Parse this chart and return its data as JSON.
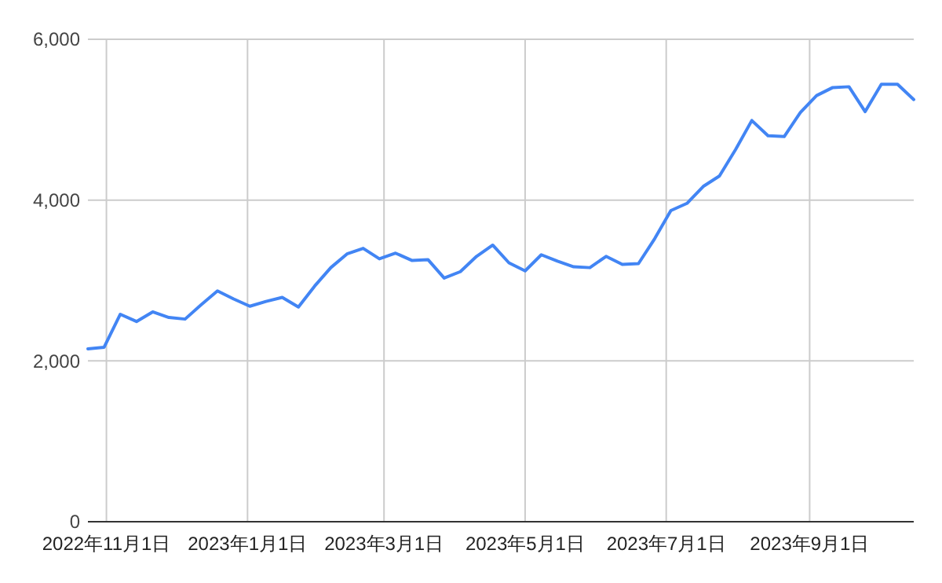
{
  "chart_data": {
    "type": "line",
    "x": [
      "2022-10-24",
      "2022-10-31",
      "2022-11-07",
      "2022-11-14",
      "2022-11-21",
      "2022-11-28",
      "2022-12-05",
      "2022-12-12",
      "2022-12-19",
      "2022-12-26",
      "2023-01-02",
      "2023-01-09",
      "2023-01-16",
      "2023-01-23",
      "2023-01-30",
      "2023-02-06",
      "2023-02-13",
      "2023-02-20",
      "2023-02-27",
      "2023-03-06",
      "2023-03-13",
      "2023-03-20",
      "2023-03-27",
      "2023-04-03",
      "2023-04-10",
      "2023-04-17",
      "2023-04-24",
      "2023-05-01",
      "2023-05-08",
      "2023-05-15",
      "2023-05-22",
      "2023-05-29",
      "2023-06-05",
      "2023-06-12",
      "2023-06-19",
      "2023-06-26",
      "2023-07-03",
      "2023-07-10",
      "2023-07-17",
      "2023-07-24",
      "2023-07-31",
      "2023-08-07",
      "2023-08-14",
      "2023-08-21",
      "2023-08-28",
      "2023-09-04",
      "2023-09-11",
      "2023-09-18",
      "2023-09-25",
      "2023-10-02",
      "2023-10-09",
      "2023-10-16"
    ],
    "series": [
      {
        "color": "#4285f4",
        "values": [
          2150,
          2170,
          2580,
          2490,
          2610,
          2540,
          2520,
          2700,
          2870,
          2770,
          2680,
          2740,
          2790,
          2670,
          2930,
          3160,
          3330,
          3400,
          3270,
          3340,
          3250,
          3260,
          3030,
          3110,
          3300,
          3440,
          3220,
          3120,
          3320,
          3240,
          3170,
          3160,
          3300,
          3200,
          3210,
          3520,
          3870,
          3960,
          4170,
          4300,
          4630,
          4990,
          4800,
          4790,
          5090,
          5300,
          5400,
          5410,
          5100,
          5440,
          5440,
          5250
        ]
      }
    ],
    "xlim": [
      "2022-10-24",
      "2023-10-16"
    ],
    "xticks": [
      {
        "value": "2022-11-01",
        "label": "2022年11月1日"
      },
      {
        "value": "2023-01-01",
        "label": "2023年1月1日"
      },
      {
        "value": "2023-03-01",
        "label": "2023年3月1日"
      },
      {
        "value": "2023-05-01",
        "label": "2023年5月1日"
      },
      {
        "value": "2023-07-01",
        "label": "2023年7月1日"
      },
      {
        "value": "2023-09-01",
        "label": "2023年9月1日"
      }
    ],
    "ylim": [
      0,
      6000
    ],
    "yticks": [
      {
        "value": 0,
        "label": "0"
      },
      {
        "value": 2000,
        "label": "2,000"
      },
      {
        "value": 4000,
        "label": "4,000"
      },
      {
        "value": 6000,
        "label": "6,000"
      }
    ],
    "grid": true,
    "marker": "none",
    "line_style": "solid"
  }
}
